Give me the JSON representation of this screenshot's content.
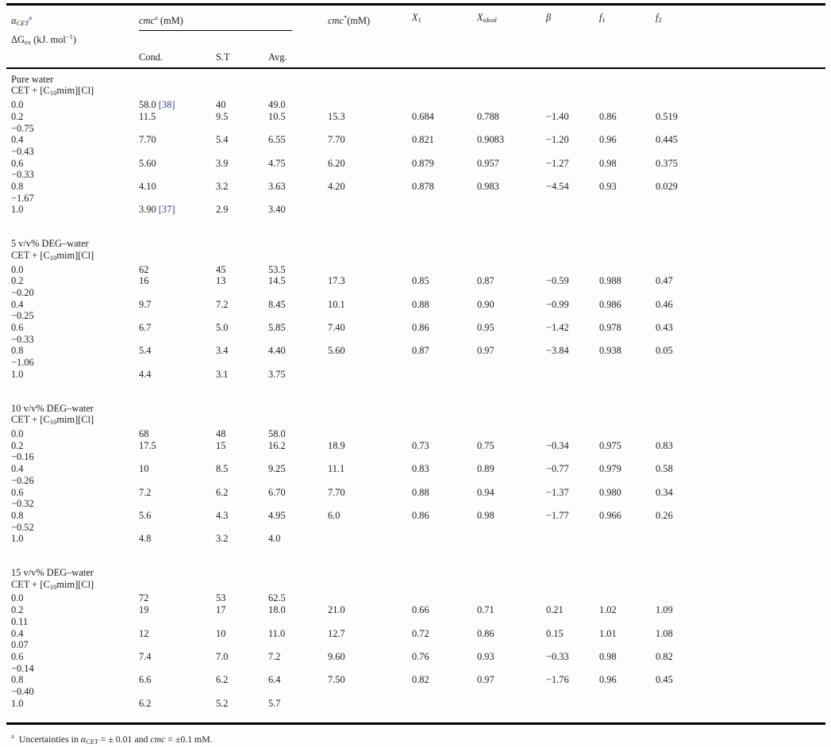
{
  "colors": {
    "ref_blue": "#37409b",
    "text": "#1d1d1d",
    "rule": "#000000"
  },
  "table": {
    "header": {
      "alpha": {
        "base": "α",
        "sub": "CET",
        "sup": "a"
      },
      "cmc_group": {
        "base": "cmc",
        "sup": "a",
        "rest": " (mM)"
      },
      "cmc_sub": [
        "Cond.",
        "S.T",
        "Avg."
      ],
      "cmc_star": {
        "base": "cmc",
        "sup": "*",
        "rest": "(mM)"
      },
      "x1": {
        "base": "X",
        "sub": "1"
      },
      "x_ideal": {
        "base": "X",
        "sub": "ideal"
      },
      "beta": "β",
      "f1": {
        "base": "f",
        "sub": "1"
      },
      "f2": {
        "base": "f",
        "sub": "2"
      },
      "dg": {
        "base": "ΔG",
        "sub": "ex",
        "rest": " (kJ. mol",
        "sup": "−1",
        "close": ")"
      }
    },
    "sections": [
      {
        "title": "Pure water",
        "system": {
          "t1": "CET + [C",
          "sub": "10",
          "t2": "mim][Cl]"
        },
        "rows": [
          {
            "alpha": "0.0",
            "cond": "58.0",
            "cond_ref": "[38]",
            "st": "40",
            "avg": "49.0",
            "cmc_star": "",
            "x1": "",
            "x_ideal": "",
            "beta": "",
            "f1": "",
            "f2": "",
            "dg": ""
          },
          {
            "alpha": "0.2",
            "cond": "11.5",
            "cond_ref": "",
            "st": "9.5",
            "avg": "10.5",
            "cmc_star": "15.3",
            "x1": "0.684",
            "x_ideal": "0.788",
            "beta": "−1.40",
            "f1": "0.86",
            "f2": "0.519",
            "dg": "−0.75"
          },
          {
            "alpha": "0.4",
            "cond": "7.70",
            "cond_ref": "",
            "st": "5.4",
            "avg": "6.55",
            "cmc_star": "7.70",
            "x1": "0.821",
            "x_ideal": "0.9083",
            "beta": "−1.20",
            "f1": "0.96",
            "f2": "0.445",
            "dg": "−0.43"
          },
          {
            "alpha": "0.6",
            "cond": "5.60",
            "cond_ref": "",
            "st": "3.9",
            "avg": "4.75",
            "cmc_star": "6.20",
            "x1": "0.879",
            "x_ideal": "0.957",
            "beta": "−1.27",
            "f1": "0.98",
            "f2": "0.375",
            "dg": "−0.33"
          },
          {
            "alpha": "0.8",
            "cond": "4.10",
            "cond_ref": "",
            "st": "3.2",
            "avg": "3.63",
            "cmc_star": "4.20",
            "x1": "0.878",
            "x_ideal": "0.983",
            "beta": "−4.54",
            "f1": "0.93",
            "f2": "0.029",
            "dg": "−1.67"
          },
          {
            "alpha": "1.0",
            "cond": "3.90",
            "cond_ref": "[37]",
            "st": "2.9",
            "avg": "3.40",
            "cmc_star": "",
            "x1": "",
            "x_ideal": "",
            "beta": "",
            "f1": "",
            "f2": "",
            "dg": ""
          }
        ]
      },
      {
        "title": "5 v/v% DEG–water",
        "system": {
          "t1": "CET + [C",
          "sub": "10",
          "t2": "mim][Cl]"
        },
        "rows": [
          {
            "alpha": "0.0",
            "cond": "62",
            "cond_ref": "",
            "st": "45",
            "avg": "53.5",
            "cmc_star": "",
            "x1": "",
            "x_ideal": "",
            "beta": "",
            "f1": "",
            "f2": "",
            "dg": ""
          },
          {
            "alpha": "0.2",
            "cond": "16",
            "cond_ref": "",
            "st": "13",
            "avg": "14.5",
            "cmc_star": "17.3",
            "x1": "0.85",
            "x_ideal": "0.87",
            "beta": "−0.59",
            "f1": "0.988",
            "f2": "0.47",
            "dg": "−0.20"
          },
          {
            "alpha": "0.4",
            "cond": "9.7",
            "cond_ref": "",
            "st": "7.2",
            "avg": "8.45",
            "cmc_star": "10.1",
            "x1": "0.88",
            "x_ideal": "0.90",
            "beta": "−0.99",
            "f1": "0.986",
            "f2": "0.46",
            "dg": "−0.25"
          },
          {
            "alpha": "0.6",
            "cond": "6.7",
            "cond_ref": "",
            "st": "5.0",
            "avg": "5.85",
            "cmc_star": "7.40",
            "x1": "0.86",
            "x_ideal": "0.95",
            "beta": "−1.42",
            "f1": "0.978",
            "f2": "0.43",
            "dg": "−0.33"
          },
          {
            "alpha": "0.8",
            "cond": "5.4",
            "cond_ref": "",
            "st": "3.4",
            "avg": "4.40",
            "cmc_star": "5.60",
            "x1": "0.87",
            "x_ideal": "0.97",
            "beta": "−3.84",
            "f1": "0.938",
            "f2": "0.05",
            "dg": "−1.06"
          },
          {
            "alpha": "1.0",
            "cond": "4.4",
            "cond_ref": "",
            "st": "3.1",
            "avg": "3.75",
            "cmc_star": "",
            "x1": "",
            "x_ideal": "",
            "beta": "",
            "f1": "",
            "f2": "",
            "dg": ""
          }
        ]
      },
      {
        "title": "10 v/v% DEG–water",
        "system": {
          "t1": "CET + [C",
          "sub": "10",
          "t2": "mim][Cl]"
        },
        "rows": [
          {
            "alpha": "0.0",
            "cond": "68",
            "cond_ref": "",
            "st": "48",
            "avg": "58.0",
            "cmc_star": "",
            "x1": "",
            "x_ideal": "",
            "beta": "",
            "f1": "",
            "f2": "",
            "dg": ""
          },
          {
            "alpha": "0.2",
            "cond": "17.5",
            "cond_ref": "",
            "st": "15",
            "avg": "16.2",
            "cmc_star": "18.9",
            "x1": "0.73",
            "x_ideal": "0.75",
            "beta": "−0.34",
            "f1": "0.975",
            "f2": "0.83",
            "dg": "−0.16"
          },
          {
            "alpha": "0.4",
            "cond": "10",
            "cond_ref": "",
            "st": "8.5",
            "avg": "9.25",
            "cmc_star": "11.1",
            "x1": "0.83",
            "x_ideal": "0.89",
            "beta": "−0.77",
            "f1": "0.979",
            "f2": "0.58",
            "dg": "−0.26"
          },
          {
            "alpha": "0.6",
            "cond": "7.2",
            "cond_ref": "",
            "st": "6.2",
            "avg": "6.70",
            "cmc_star": "7.70",
            "x1": "0.88",
            "x_ideal": "0.94",
            "beta": "−1.37",
            "f1": "0.980",
            "f2": "0.34",
            "dg": "−0.32"
          },
          {
            "alpha": "0.8",
            "cond": "5.6",
            "cond_ref": "",
            "st": "4.3",
            "avg": "4.95",
            "cmc_star": "6.0",
            "x1": "0.86",
            "x_ideal": "0.98",
            "beta": "−1.77",
            "f1": "0.966",
            "f2": "0.26",
            "dg": "−0.52"
          },
          {
            "alpha": "1.0",
            "cond": "4.8",
            "cond_ref": "",
            "st": "3.2",
            "avg": "4.0",
            "cmc_star": "",
            "x1": "",
            "x_ideal": "",
            "beta": "",
            "f1": "",
            "f2": "",
            "dg": ""
          }
        ]
      },
      {
        "title": "15 v/v% DEG–water",
        "system": {
          "t1": "CET + [C",
          "sub": "10",
          "t2": "mim][Cl]"
        },
        "rows": [
          {
            "alpha": "0.0",
            "cond": "72",
            "cond_ref": "",
            "st": "53",
            "avg": "62.5",
            "cmc_star": "",
            "x1": "",
            "x_ideal": "",
            "beta": "",
            "f1": "",
            "f2": "",
            "dg": ""
          },
          {
            "alpha": "0.2",
            "cond": "19",
            "cond_ref": "",
            "st": "17",
            "avg": "18.0",
            "cmc_star": "21.0",
            "x1": "0.66",
            "x_ideal": "0.71",
            "beta": "0.21",
            "f1": "1.02",
            "f2": "1.09",
            "dg": "0.11"
          },
          {
            "alpha": "0.4",
            "cond": "12",
            "cond_ref": "",
            "st": "10",
            "avg": "11.0",
            "cmc_star": "12.7",
            "x1": "0.72",
            "x_ideal": "0.86",
            "beta": "0.15",
            "f1": "1.01",
            "f2": "1.08",
            "dg": "0.07"
          },
          {
            "alpha": "0.6",
            "cond": "7.4",
            "cond_ref": "",
            "st": "7.0",
            "avg": "7.2",
            "cmc_star": "9.60",
            "x1": "0.76",
            "x_ideal": "0.93",
            "beta": "−0.33",
            "f1": "0.98",
            "f2": "0.82",
            "dg": "−0.14"
          },
          {
            "alpha": "0.8",
            "cond": "6.6",
            "cond_ref": "",
            "st": "6.2",
            "avg": "6.4",
            "cmc_star": "7.50",
            "x1": "0.82",
            "x_ideal": "0.97",
            "beta": "−1.76",
            "f1": "0.96",
            "f2": "0.45",
            "dg": "−0.40"
          },
          {
            "alpha": "1.0",
            "cond": "6.2",
            "cond_ref": "",
            "st": "5.2",
            "avg": "5.7",
            "cmc_star": "",
            "x1": "",
            "x_ideal": "",
            "beta": "",
            "f1": "",
            "f2": "",
            "dg": ""
          }
        ]
      }
    ],
    "footnote": {
      "marker": "a",
      "t1": "Uncertainties in ",
      "alpha": "α",
      "alpha_sub": "CET",
      "t2": " = ± 0.01 and ",
      "cmc": "cmc",
      "t3": " = ±0.1 mM."
    }
  }
}
